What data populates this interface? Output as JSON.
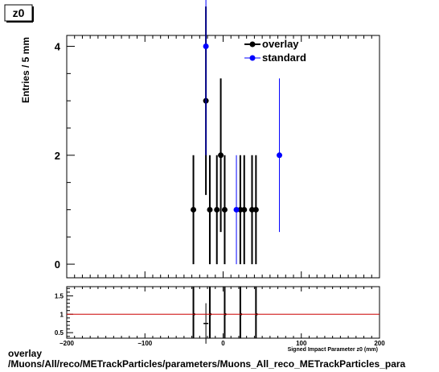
{
  "title_box": "z0",
  "footer": {
    "line1": "overlay",
    "line2": "/Muons/All/reco/METrackParticles/parameters/Muons_All_reco_METrackParticles_para"
  },
  "colors": {
    "overlay": "#000000",
    "standard": "#0000ff",
    "ratio_line": "#cc0000"
  },
  "chart_data": [
    {
      "type": "scatter",
      "ylabel": "Entries / 5 mm",
      "xlim": [
        -200,
        200
      ],
      "ylim": [
        -0.25,
        4.2
      ],
      "yticks": [
        0,
        2,
        4
      ],
      "ytick_labels": [
        "0",
        "2",
        "4"
      ],
      "legend": {
        "placement": "top-right"
      },
      "series": [
        {
          "name": "overlay",
          "color": "#000000",
          "points": [
            {
              "x": -38,
              "y": 1,
              "err": 1
            },
            {
              "x": -22,
              "y": 3,
              "err": 1.73
            },
            {
              "x": -17,
              "y": 1,
              "err": 1
            },
            {
              "x": -8,
              "y": 1,
              "err": 1
            },
            {
              "x": -3,
              "y": 2,
              "err": 1.41
            },
            {
              "x": 2,
              "y": 1,
              "err": 1
            },
            {
              "x": 22,
              "y": 1,
              "err": 1
            },
            {
              "x": 27,
              "y": 1,
              "err": 1
            },
            {
              "x": 37,
              "y": 1,
              "err": 1
            },
            {
              "x": 42,
              "y": 1,
              "err": 1
            }
          ]
        },
        {
          "name": "standard",
          "color": "#0000ff",
          "points": [
            {
              "x": -22,
              "y": 4,
              "err": 2
            },
            {
              "x": 17,
              "y": 1,
              "err": 1
            },
            {
              "x": 72,
              "y": 2,
              "err": 1.41
            }
          ]
        }
      ]
    },
    {
      "type": "scatter",
      "xlabel": "Signed Impact Parameter z0 (mm)",
      "xlim": [
        -200,
        200
      ],
      "ylim": [
        0.35,
        1.75
      ],
      "xticks": [
        -200,
        -100,
        0,
        100,
        200
      ],
      "xtick_labels": [
        "−200",
        "−100",
        "0",
        "100",
        "200"
      ],
      "yticks": [
        0.5,
        1,
        1.5
      ],
      "ytick_labels": [
        "0.5",
        "1",
        "1.5"
      ],
      "reference_line": 1,
      "series": [
        {
          "points": [
            {
              "x": -22,
              "y": 0.75,
              "err": 0.55
            }
          ]
        }
      ],
      "full_range_bars_x": [
        -38,
        -17,
        2,
        22,
        42
      ]
    }
  ]
}
